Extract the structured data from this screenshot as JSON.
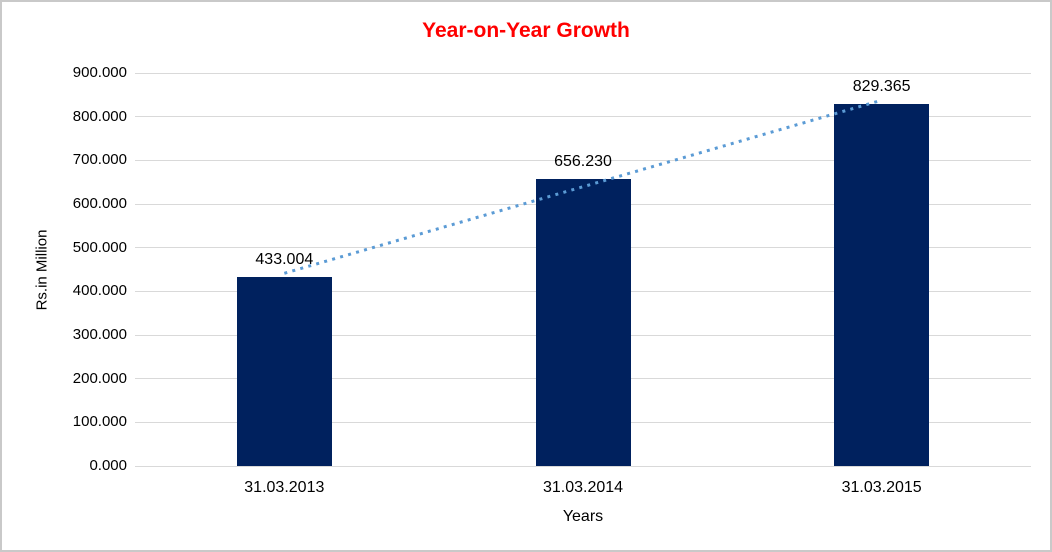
{
  "chart_data": {
    "type": "bar",
    "title": "Year-on-Year Growth",
    "xlabel": "Years",
    "ylabel": "Rs.in Million",
    "categories": [
      "31.03.2013",
      "31.03.2014",
      "31.03.2015"
    ],
    "values": [
      433.004,
      656.23,
      829.365
    ],
    "value_labels": [
      "433.004",
      "656.230",
      "829.365"
    ],
    "ylim": [
      0,
      900
    ],
    "ytick_step": 100,
    "ytick_labels": [
      "0.000",
      "100.000",
      "200.000",
      "300.000",
      "400.000",
      "500.000",
      "600.000",
      "700.000",
      "800.000",
      "900.000"
    ],
    "grid": true,
    "legend": "none",
    "trendline": {
      "type": "linear",
      "style": "dotted",
      "color": "#5B9BD5"
    },
    "colors": {
      "bar": "#00215E",
      "title": "#FF0000",
      "gridline": "#D9D9D9",
      "baseline": "#D9D9D9",
      "axis_text": "#000000",
      "background": "#FFFFFF",
      "border": "#C9C9C9"
    }
  }
}
